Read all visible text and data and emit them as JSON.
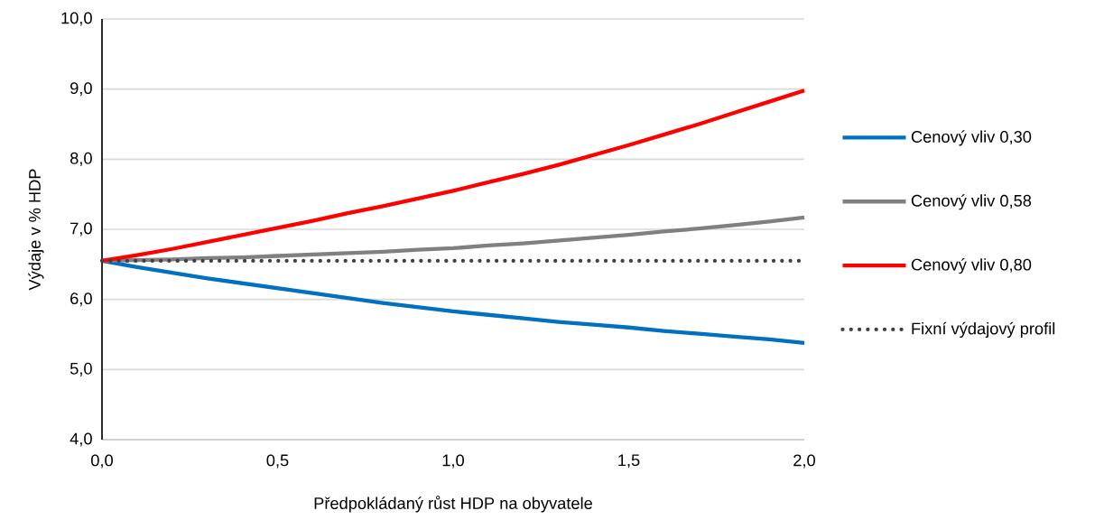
{
  "chart_data": {
    "type": "line",
    "xlabel": "Předpokládaný růst HDP na obyvatele",
    "ylabel": "Výdaje v % HDP",
    "x": [
      0,
      0.1,
      0.2,
      0.3,
      0.4,
      0.5,
      0.6,
      0.7,
      0.8,
      0.9,
      1.0,
      1.1,
      1.2,
      1.3,
      1.4,
      1.5,
      1.6,
      1.7,
      1.8,
      1.9,
      2.0
    ],
    "series": [
      {
        "name": "Cenový vliv 0,30",
        "color": "#0070c0",
        "line_style": "solid",
        "values": [
          6.55,
          6.46,
          6.38,
          6.3,
          6.23,
          6.16,
          6.09,
          6.02,
          5.95,
          5.89,
          5.83,
          5.78,
          5.73,
          5.68,
          5.64,
          5.6,
          5.55,
          5.51,
          5.47,
          5.43,
          5.38
        ]
      },
      {
        "name": "Cenový vliv 0,58",
        "color": "#808080",
        "line_style": "solid",
        "values": [
          6.55,
          6.56,
          6.57,
          6.59,
          6.6,
          6.62,
          6.64,
          6.66,
          6.68,
          6.71,
          6.73,
          6.77,
          6.8,
          6.84,
          6.88,
          6.92,
          6.97,
          7.01,
          7.06,
          7.11,
          7.17
        ]
      },
      {
        "name": "Cenový vliv 0,80",
        "color": "#ff0000",
        "line_style": "solid",
        "values": [
          6.55,
          6.63,
          6.72,
          6.82,
          6.92,
          7.02,
          7.12,
          7.23,
          7.33,
          7.44,
          7.55,
          7.67,
          7.79,
          7.92,
          8.06,
          8.2,
          8.35,
          8.5,
          8.66,
          8.82,
          8.98
        ]
      },
      {
        "name": "Fixní výdajový profil",
        "color": "#404040",
        "line_style": "dotted",
        "values": [
          6.55,
          6.55,
          6.55,
          6.55,
          6.55,
          6.55,
          6.55,
          6.55,
          6.55,
          6.55,
          6.55,
          6.55,
          6.55,
          6.55,
          6.55,
          6.55,
          6.55,
          6.55,
          6.55,
          6.55,
          6.55
        ]
      }
    ],
    "xlim": [
      0,
      2
    ],
    "ylim": [
      4,
      10
    ],
    "xticks": [
      {
        "value": 0,
        "label": "0,0"
      },
      {
        "value": 0.5,
        "label": "0,5"
      },
      {
        "value": 1,
        "label": "1,0"
      },
      {
        "value": 1.5,
        "label": "1,5"
      },
      {
        "value": 2,
        "label": "2,0"
      }
    ],
    "yticks": [
      {
        "value": 4,
        "label": "4,0"
      },
      {
        "value": 5,
        "label": "5,0"
      },
      {
        "value": 6,
        "label": "6,0"
      },
      {
        "value": 7,
        "label": "7,0"
      },
      {
        "value": 8,
        "label": "8,0"
      },
      {
        "value": 9,
        "label": "9,0"
      },
      {
        "value": 10,
        "label": "10,0"
      }
    ],
    "grid": "y",
    "legend": "right"
  }
}
